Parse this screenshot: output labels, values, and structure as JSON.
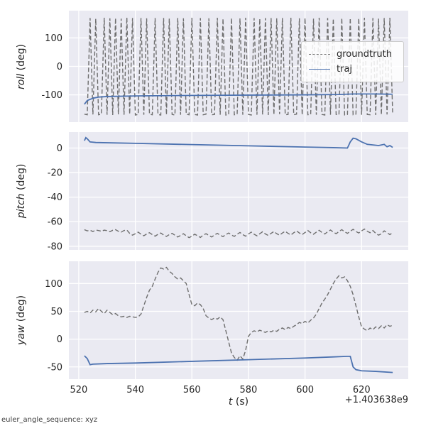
{
  "figure": {
    "background": "#ffffff",
    "axes_background": "#eaeaf2",
    "grid_color": "#ffffff",
    "tick_color": "#262626",
    "xlabel_italic": "t",
    "xlabel_rest": " (s)",
    "x_offset_text": "+1.403638e9",
    "footer_note": "euler_angle_sequence: xyz"
  },
  "legend": {
    "entries": [
      {
        "label": "groundtruth",
        "color": "#6e6e6e",
        "dash": true
      },
      {
        "label": "traj",
        "color": "#4c72b0",
        "dash": false
      }
    ]
  },
  "chart_data": [
    {
      "type": "line",
      "ylabel_italic": "roll",
      "ylabel_rest": " (deg)",
      "ylabel": "roll (deg)",
      "xlim": [
        516.5,
        636.5
      ],
      "ylim": [
        -196,
        196
      ],
      "xticks": [
        520,
        540,
        560,
        580,
        600,
        620
      ],
      "yticks": [
        100,
        0,
        -100
      ],
      "grid": true,
      "legend_position": "center right",
      "series": [
        {
          "name": "groundtruth",
          "dash": true,
          "color": "#6e6e6e",
          "x_start": 522,
          "x_step": 1,
          "y": [
            -168,
            -170,
            170,
            -169,
            168,
            -170,
            -168,
            171,
            -170,
            169,
            -171,
            170,
            -169,
            168,
            -170,
            172,
            -168,
            170,
            -171,
            -169,
            170,
            -170,
            169,
            -168,
            -170,
            170,
            -169,
            -171,
            170,
            -170,
            168,
            -169,
            -171,
            170,
            -170,
            169,
            -168,
            -170,
            171,
            -169,
            -171,
            170,
            -170,
            -168,
            169,
            -170,
            -169,
            171,
            -170,
            168,
            -171,
            -169,
            170,
            -170,
            -168,
            169,
            -170,
            171,
            -169,
            -171,
            170,
            -170,
            168,
            -169,
            170,
            -171,
            170,
            -170,
            169,
            -168,
            170,
            -170,
            -169,
            171,
            -170,
            -168,
            169,
            -171,
            170,
            -170,
            -169,
            168,
            -170,
            171,
            -169,
            -171,
            170,
            -170,
            168,
            -169,
            -170,
            170,
            -171,
            -169,
            170,
            -170,
            -168,
            169,
            -170,
            171,
            -169,
            -170,
            170,
            -171,
            168,
            -170,
            170,
            -169,
            171,
            -170
          ]
        },
        {
          "name": "traj",
          "dash": false,
          "color": "#4c72b0",
          "x": [
            522,
            523,
            525,
            527,
            530,
            540,
            560,
            580,
            600,
            612,
            617,
            625,
            631
          ],
          "y": [
            -133,
            -120,
            -112,
            -108,
            -106,
            -104,
            -102,
            -101,
            -100,
            -99,
            -97,
            -97,
            -98
          ]
        }
      ]
    },
    {
      "type": "line",
      "ylabel_italic": "pitch",
      "ylabel_rest": " (deg)",
      "ylabel": "pitch (deg)",
      "xlim": [
        516.5,
        636.5
      ],
      "ylim": [
        -83,
        13
      ],
      "xticks": [
        520,
        540,
        560,
        580,
        600,
        620
      ],
      "yticks": [
        0,
        -20,
        -40,
        -60,
        -80
      ],
      "grid": true,
      "series": [
        {
          "name": "groundtruth",
          "dash": true,
          "color": "#6e6e6e",
          "x_start": 522,
          "x_step": 1,
          "y": [
            -66.5,
            -67.5,
            -67,
            -68,
            -66.8,
            -67.2,
            -67.8,
            -66.9,
            -67.3,
            -68.2,
            -67,
            -66.5,
            -67.8,
            -68.5,
            -67.2,
            -66.8,
            -69.5,
            -71,
            -69.8,
            -68.5,
            -70.2,
            -71.5,
            -70,
            -69,
            -70.5,
            -71.8,
            -70.3,
            -69.2,
            -70.8,
            -72,
            -70.5,
            -69.5,
            -71,
            -72.5,
            -71.2,
            -69.8,
            -71.5,
            -73,
            -71.8,
            -70.2,
            -71.5,
            -72.8,
            -71,
            -69.8,
            -71.2,
            -72.5,
            -70.8,
            -69.5,
            -71,
            -72.2,
            -70.5,
            -69.2,
            -70.8,
            -72,
            -70.2,
            -68.8,
            -70.5,
            -71.8,
            -70,
            -68.5,
            -70.2,
            -71.5,
            -69.8,
            -68.2,
            -70,
            -71.2,
            -69.5,
            -68,
            -69.8,
            -71,
            -69.2,
            -67.8,
            -69.5,
            -70.8,
            -69,
            -67.5,
            -69.2,
            -70.5,
            -68.8,
            -67.2,
            -69,
            -70.2,
            -68.5,
            -67,
            -68.8,
            -70,
            -68.2,
            -66.8,
            -68.5,
            -69.8,
            -68,
            -66.5,
            -68.2,
            -69.5,
            -67.8,
            -66.2,
            -68,
            -69.2,
            -67.5,
            -66,
            -67.8,
            -69,
            -67.2,
            -69.5,
            -71,
            -69.8,
            -67.5,
            -69,
            -70.5,
            -69
          ]
        },
        {
          "name": "traj",
          "dash": false,
          "color": "#4c72b0",
          "x": [
            522,
            522.5,
            523,
            524,
            526,
            530,
            540,
            560,
            580,
            600,
            610,
            615,
            616,
            617,
            618,
            620,
            622,
            624,
            626,
            628,
            629,
            630,
            631
          ],
          "y": [
            6,
            8.5,
            7.5,
            5,
            4.5,
            4.3,
            3.8,
            2.8,
            1.8,
            0.8,
            0.3,
            0,
            5,
            8,
            7.5,
            5,
            3,
            2.5,
            2,
            3,
            1,
            2,
            0.5
          ]
        }
      ]
    },
    {
      "type": "line",
      "ylabel_italic": "yaw",
      "ylabel_rest": " (deg)",
      "ylabel": "yaw (deg)",
      "xlabel": "t (s)",
      "xlim": [
        516.5,
        636.5
      ],
      "ylim": [
        -72,
        140
      ],
      "xticks": [
        520,
        540,
        560,
        580,
        600,
        620
      ],
      "yticks": [
        100,
        50,
        0,
        -50
      ],
      "grid": true,
      "series": [
        {
          "name": "groundtruth",
          "dash": true,
          "color": "#6e6e6e",
          "x_start": 522,
          "x_step": 1,
          "y": [
            48,
            50,
            47,
            52,
            49,
            55,
            50,
            46,
            52,
            48,
            44,
            46,
            42,
            40,
            41,
            39,
            41,
            40,
            39,
            40,
            45,
            60,
            75,
            88,
            95,
            108,
            120,
            128,
            126,
            129,
            122,
            118,
            112,
            108,
            110,
            105,
            100,
            80,
            62,
            60,
            65,
            62,
            55,
            42,
            38,
            35,
            38,
            36,
            40,
            35,
            15,
            -5,
            -25,
            -33,
            -38,
            -30,
            -36,
            -20,
            5,
            12,
            15,
            13,
            16,
            14,
            12,
            15,
            13,
            16,
            14,
            18,
            20,
            17,
            21,
            19,
            23,
            26,
            30,
            28,
            32,
            29,
            34,
            38,
            45,
            55,
            65,
            72,
            80,
            90,
            100,
            108,
            114,
            110,
            112,
            105,
            95,
            80,
            60,
            40,
            22,
            18,
            15,
            20,
            17,
            22,
            19,
            24,
            20,
            26,
            23,
            25
          ]
        },
        {
          "name": "traj",
          "dash": false,
          "color": "#4c72b0",
          "x": [
            522,
            523,
            524,
            525,
            530,
            540,
            560,
            580,
            600,
            610,
            615,
            616,
            617,
            618,
            620,
            625,
            631
          ],
          "y": [
            -30,
            -35,
            -46,
            -45,
            -44,
            -43,
            -40,
            -37,
            -34,
            -32,
            -31,
            -31,
            -50,
            -55,
            -57,
            -58,
            -60
          ]
        }
      ]
    }
  ]
}
